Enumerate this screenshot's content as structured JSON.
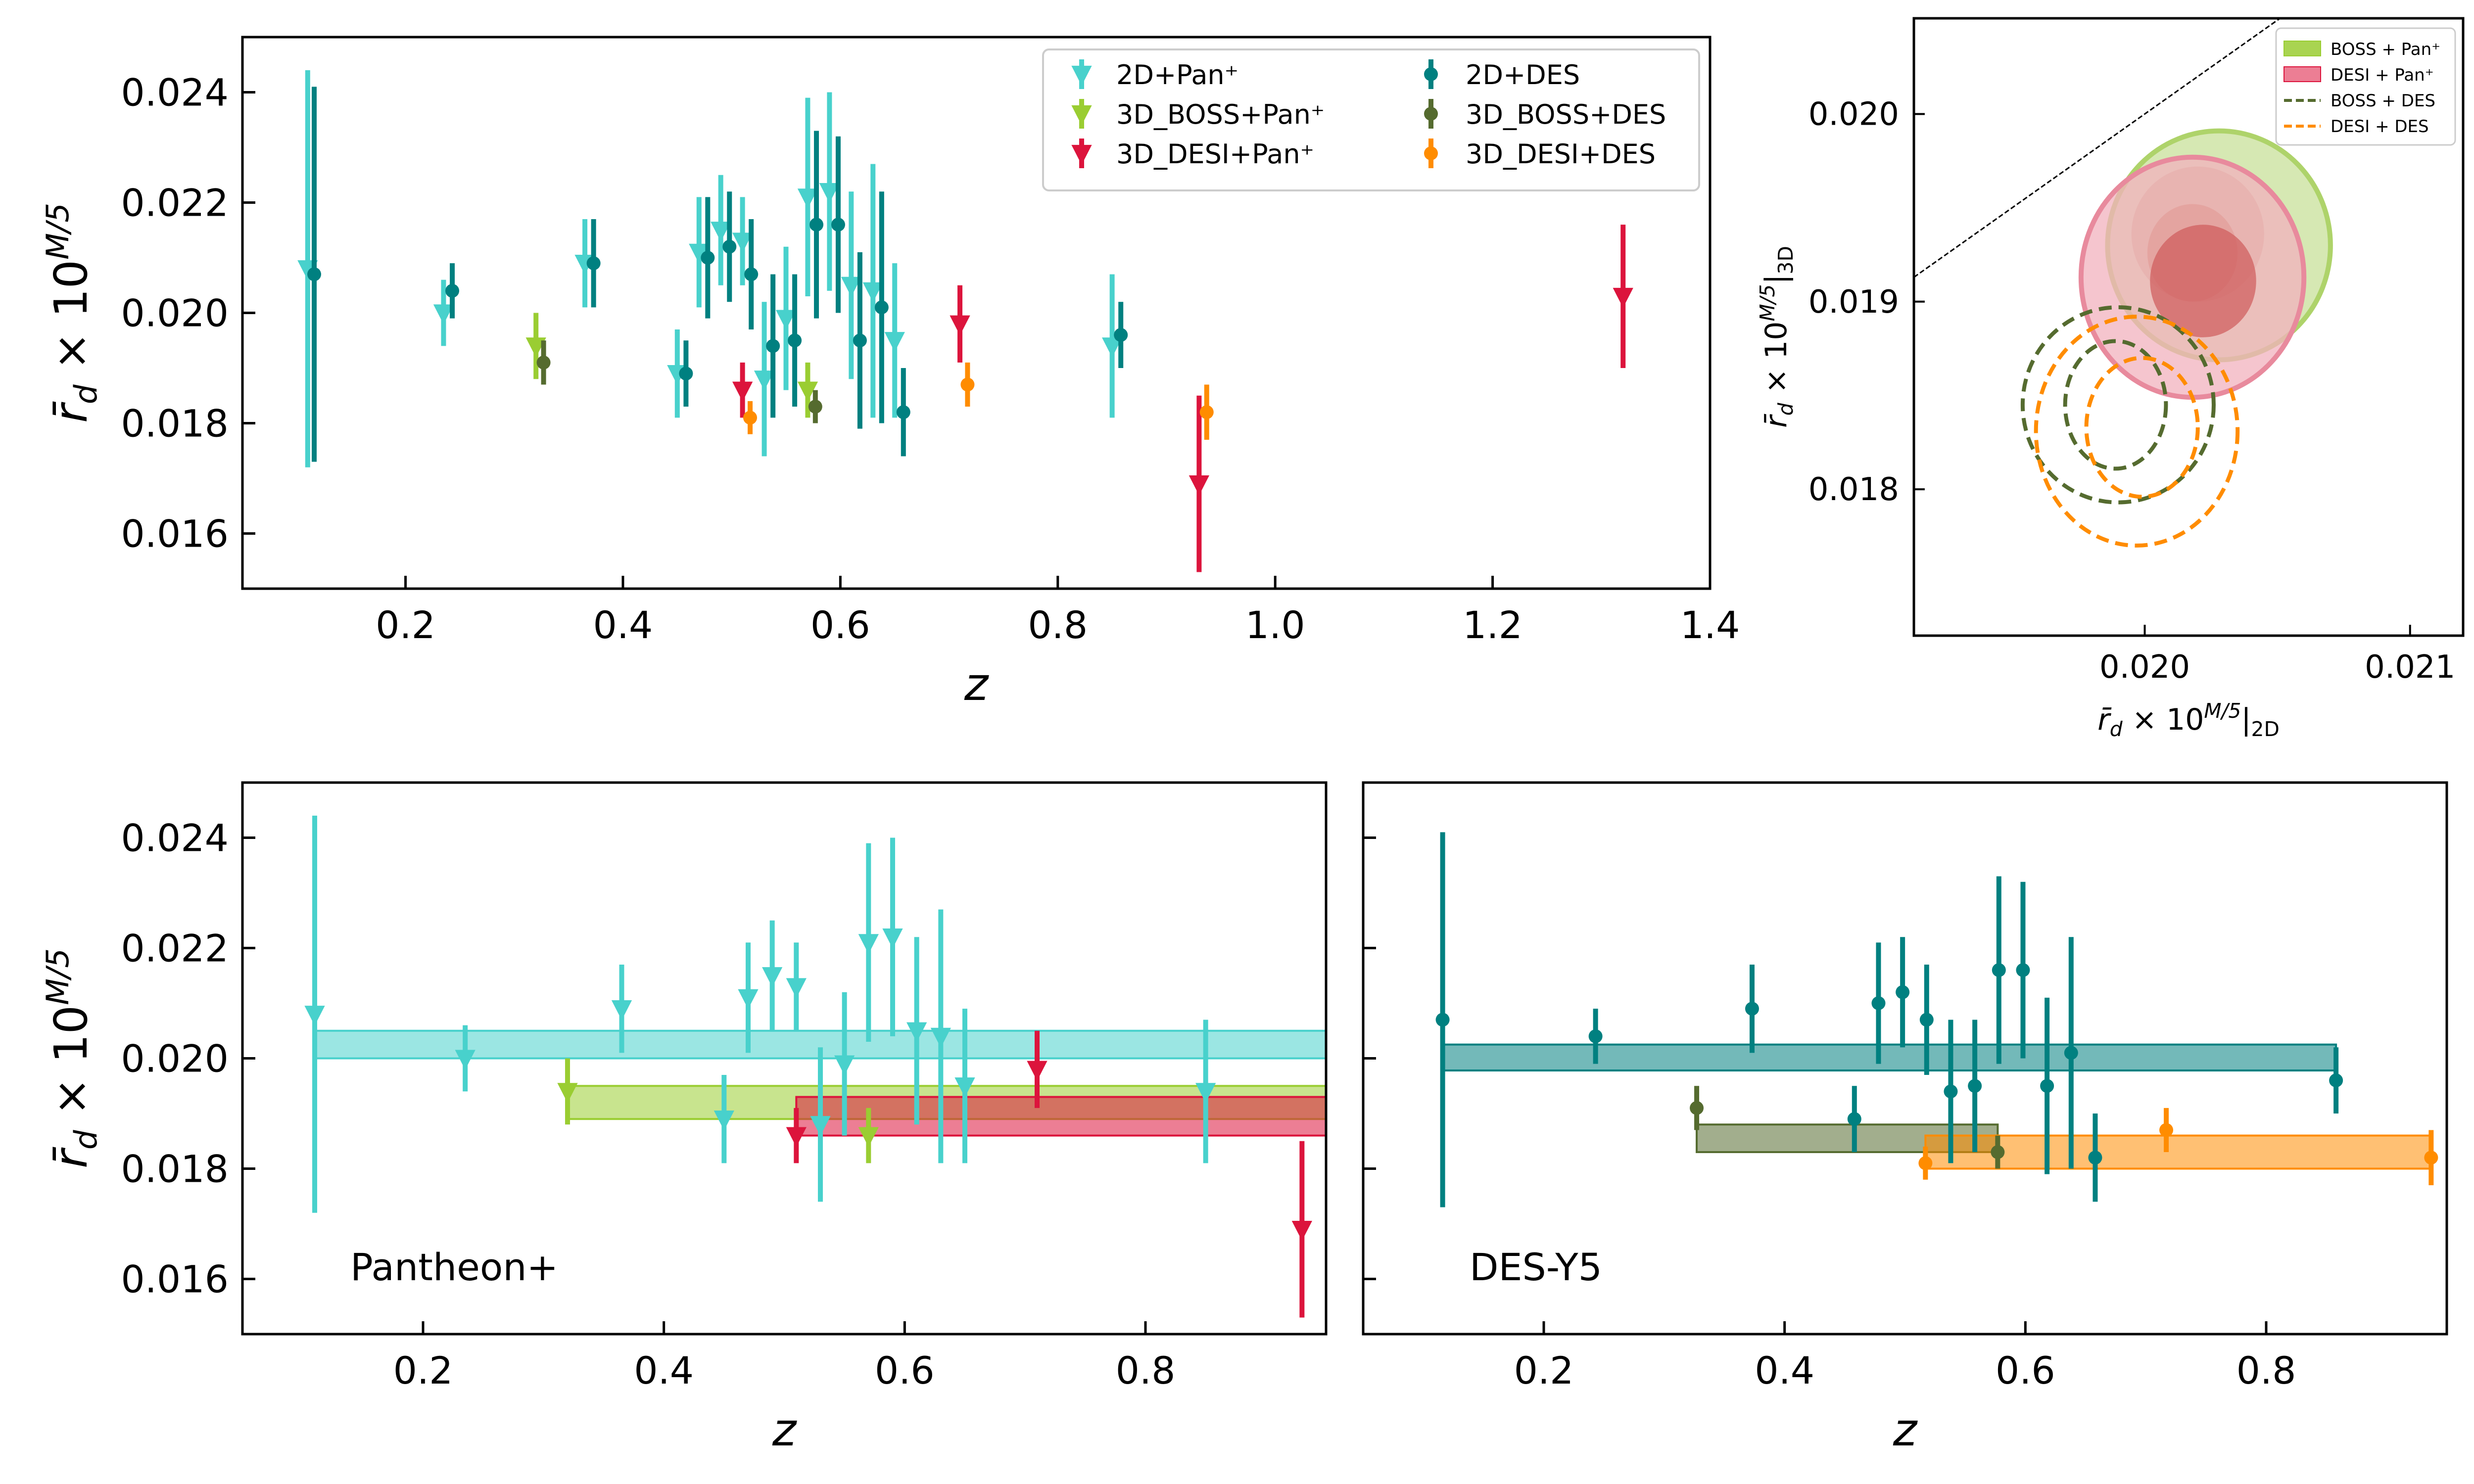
{
  "figure": {
    "ylabel": "r̄_d × 10^{M/5}",
    "xlabel": "z",
    "panel_b_annotation": "Pantheon+",
    "panel_c_annotation": "DES-Y5"
  },
  "colors": {
    "pan2d": "#48d1cc",
    "boss_pan": "#9acd32",
    "desi_pan": "#dc143c",
    "des2d": "#008080",
    "boss_des": "#556b2f",
    "desi_des": "#ff8c00"
  },
  "chart_data": [
    {
      "id": "top-left",
      "type": "scatter",
      "title": "",
      "xlabel": "z",
      "ylabel": "r̄_d × 10^{M/5}",
      "xlim": [
        0.05,
        1.4
      ],
      "ylim": [
        0.015,
        0.025
      ],
      "xticks": [
        "0.2",
        "0.4",
        "0.6",
        "0.8",
        "1.0",
        "1.2",
        "1.4"
      ],
      "yticks": [
        "0.016",
        "0.018",
        "0.020",
        "0.022",
        "0.024"
      ],
      "legend_position": "top-center",
      "series": [
        {
          "name": "2D+Pan⁺",
          "color_key": "pan2d",
          "marker": "triangle-down",
          "points": [
            [
              0.11,
              0.0208,
              0.0036
            ],
            [
              0.235,
              0.02,
              0.0006
            ],
            [
              0.365,
              0.0209,
              0.0008
            ],
            [
              0.45,
              0.0189,
              0.0008
            ],
            [
              0.47,
              0.0211,
              0.001
            ],
            [
              0.49,
              0.0215,
              0.001
            ],
            [
              0.51,
              0.0213,
              0.0008
            ],
            [
              0.53,
              0.0188,
              0.0014
            ],
            [
              0.55,
              0.0199,
              0.0013
            ],
            [
              0.57,
              0.0221,
              0.0018
            ],
            [
              0.59,
              0.0222,
              0.0018
            ],
            [
              0.61,
              0.0205,
              0.0017
            ],
            [
              0.63,
              0.0204,
              0.0023
            ],
            [
              0.65,
              0.0195,
              0.0014
            ],
            [
              0.85,
              0.0194,
              0.0013
            ]
          ]
        },
        {
          "name": "3D_BOSS+Pan⁺",
          "color_key": "boss_pan",
          "marker": "triangle-down",
          "points": [
            [
              0.32,
              0.0194,
              0.0006
            ],
            [
              0.57,
              0.0186,
              0.0005
            ]
          ]
        },
        {
          "name": "3D_DESI+Pan⁺",
          "color_key": "desi_pan",
          "marker": "triangle-down",
          "points": [
            [
              0.51,
              0.0186,
              0.0005
            ],
            [
              0.71,
              0.0198,
              0.0007
            ],
            [
              0.93,
              0.0169,
              0.0016
            ],
            [
              1.32,
              0.0203,
              0.0013
            ]
          ]
        },
        {
          "name": "2D+DES",
          "color_key": "des2d",
          "marker": "circle",
          "points": [
            [
              0.116,
              0.0207,
              0.0034
            ],
            [
              0.243,
              0.0204,
              0.0005
            ],
            [
              0.373,
              0.0209,
              0.0008
            ],
            [
              0.458,
              0.0189,
              0.0006
            ],
            [
              0.478,
              0.021,
              0.0011
            ],
            [
              0.498,
              0.0212,
              0.001
            ],
            [
              0.518,
              0.0207,
              0.001
            ],
            [
              0.538,
              0.0194,
              0.0013
            ],
            [
              0.558,
              0.0195,
              0.0012
            ],
            [
              0.578,
              0.0216,
              0.0017
            ],
            [
              0.598,
              0.0216,
              0.0016
            ],
            [
              0.618,
              0.0195,
              0.0016
            ],
            [
              0.638,
              0.0201,
              0.0021
            ],
            [
              0.658,
              0.0182,
              0.0008
            ],
            [
              0.858,
              0.0196,
              0.0006
            ]
          ]
        },
        {
          "name": "3D_BOSS+DES",
          "color_key": "boss_des",
          "marker": "circle",
          "points": [
            [
              0.327,
              0.0191,
              0.0004
            ],
            [
              0.577,
              0.0183,
              0.0003
            ]
          ]
        },
        {
          "name": "3D_DESI+DES",
          "color_key": "desi_des",
          "marker": "circle",
          "points": [
            [
              0.517,
              0.0181,
              0.0003
            ],
            [
              0.717,
              0.0187,
              0.0004
            ],
            [
              0.937,
              0.0182,
              0.0005
            ]
          ]
        }
      ]
    },
    {
      "id": "top-right",
      "type": "contour",
      "xlabel": "r̄_d × 10^{M/5}|_{2D}",
      "ylabel": "r̄_d × 10^{M/5}|_{3D}",
      "xlim": [
        0.01913,
        0.0212
      ],
      "ylim": [
        0.01722,
        0.02051
      ],
      "xticks": [
        "0.020",
        "0.021"
      ],
      "yticks": [
        "0.018",
        "0.019",
        "0.020"
      ],
      "legend_position": "top-right",
      "series": [
        {
          "name": "BOSS + Pan⁺",
          "color_key": "boss_pan",
          "style": "filled",
          "ellipses": [
            [
              0.02028,
              0.0193,
              0.00042,
              0.00061
            ],
            [
              0.0202,
              0.01936,
              0.00025,
              0.00036
            ],
            [
              0.02018,
              0.01926,
              0.00017,
              0.00026
            ]
          ]
        },
        {
          "name": "DESI + Pan⁺",
          "color_key": "desi_pan",
          "style": "filled",
          "ellipses": [
            [
              0.02018,
              0.01913,
              0.00042,
              0.00064
            ],
            [
              0.02022,
              0.01911,
              0.0002,
              0.0003
            ]
          ]
        },
        {
          "name": "BOSS + DES",
          "color_key": "boss_des",
          "style": "dashed",
          "ellipses": [
            [
              0.0199,
              0.01845,
              0.00036,
              0.00052
            ],
            [
              0.01989,
              0.01845,
              0.00019,
              0.00034
            ]
          ]
        },
        {
          "name": "DESI + DES",
          "color_key": "desi_des",
          "style": "dashed",
          "ellipses": [
            [
              0.01997,
              0.01831,
              0.00038,
              0.00061
            ],
            [
              0.01999,
              0.01833,
              0.00021,
              0.00037
            ]
          ]
        }
      ]
    },
    {
      "id": "bottom-left",
      "type": "scatter",
      "xlabel": "z",
      "ylabel": "r̄_d × 10^{M/5}",
      "annotation": "Pantheon+",
      "xlim": [
        0.05,
        0.95
      ],
      "ylim": [
        0.015,
        0.025
      ],
      "xticks": [
        "0.2",
        "0.4",
        "0.6",
        "0.8"
      ],
      "yticks": [
        "0.016",
        "0.018",
        "0.020",
        "0.022",
        "0.024"
      ],
      "bands": [
        {
          "color_key": "pan2d",
          "z_range": [
            0.11,
            0.95
          ],
          "y_range": [
            0.02,
            0.0205
          ]
        },
        {
          "color_key": "boss_pan",
          "z_range": [
            0.32,
            0.95
          ],
          "y_range": [
            0.0189,
            0.0195
          ]
        },
        {
          "color_key": "desi_pan",
          "z_range": [
            0.51,
            0.95
          ],
          "y_range": [
            0.0186,
            0.0193
          ]
        }
      ],
      "series": [
        {
          "name": "2D+Pan⁺",
          "color_key": "pan2d",
          "marker": "triangle-down",
          "points": [
            [
              0.11,
              0.0208,
              0.0036
            ],
            [
              0.235,
              0.02,
              0.0006
            ],
            [
              0.365,
              0.0209,
              0.0008
            ],
            [
              0.45,
              0.0189,
              0.0008
            ],
            [
              0.47,
              0.0211,
              0.001
            ],
            [
              0.49,
              0.0215,
              0.001
            ],
            [
              0.51,
              0.0213,
              0.0008
            ],
            [
              0.53,
              0.0188,
              0.0014
            ],
            [
              0.55,
              0.0199,
              0.0013
            ],
            [
              0.57,
              0.0221,
              0.0018
            ],
            [
              0.59,
              0.0222,
              0.0018
            ],
            [
              0.61,
              0.0205,
              0.0017
            ],
            [
              0.63,
              0.0204,
              0.0023
            ],
            [
              0.65,
              0.0195,
              0.0014
            ],
            [
              0.85,
              0.0194,
              0.0013
            ]
          ]
        },
        {
          "name": "3D_BOSS+Pan⁺",
          "color_key": "boss_pan",
          "marker": "triangle-down",
          "points": [
            [
              0.32,
              0.0194,
              0.0006
            ],
            [
              0.57,
              0.0186,
              0.0005
            ]
          ]
        },
        {
          "name": "3D_DESI+Pan⁺",
          "color_key": "desi_pan",
          "marker": "triangle-down",
          "points": [
            [
              0.51,
              0.0186,
              0.0005
            ],
            [
              0.71,
              0.0198,
              0.0007
            ],
            [
              0.93,
              0.0169,
              0.0016
            ]
          ]
        }
      ]
    },
    {
      "id": "bottom-right",
      "type": "scatter",
      "xlabel": "z",
      "annotation": "DES-Y5",
      "xlim": [
        0.05,
        0.95
      ],
      "ylim": [
        0.015,
        0.025
      ],
      "xticks": [
        "0.2",
        "0.4",
        "0.6",
        "0.8"
      ],
      "yticks": [],
      "bands": [
        {
          "color_key": "des2d",
          "z_range": [
            0.116,
            0.858
          ],
          "y_range": [
            0.01978,
            0.02025
          ]
        },
        {
          "color_key": "boss_des",
          "z_range": [
            0.327,
            0.577
          ],
          "y_range": [
            0.0183,
            0.0188
          ]
        },
        {
          "color_key": "desi_des",
          "z_range": [
            0.517,
            0.937
          ],
          "y_range": [
            0.018,
            0.0186
          ]
        }
      ],
      "series": [
        {
          "name": "2D+DES",
          "color_key": "des2d",
          "marker": "circle",
          "points": [
            [
              0.116,
              0.0207,
              0.0034
            ],
            [
              0.243,
              0.0204,
              0.0005
            ],
            [
              0.373,
              0.0209,
              0.0008
            ],
            [
              0.458,
              0.0189,
              0.0006
            ],
            [
              0.478,
              0.021,
              0.0011
            ],
            [
              0.498,
              0.0212,
              0.001
            ],
            [
              0.518,
              0.0207,
              0.001
            ],
            [
              0.538,
              0.0194,
              0.0013
            ],
            [
              0.558,
              0.0195,
              0.0012
            ],
            [
              0.578,
              0.0216,
              0.0017
            ],
            [
              0.598,
              0.0216,
              0.0016
            ],
            [
              0.618,
              0.0195,
              0.0016
            ],
            [
              0.638,
              0.0201,
              0.0021
            ],
            [
              0.658,
              0.0182,
              0.0008
            ],
            [
              0.858,
              0.0196,
              0.0006
            ]
          ]
        },
        {
          "name": "3D_BOSS+DES",
          "color_key": "boss_des",
          "marker": "circle",
          "points": [
            [
              0.327,
              0.0191,
              0.0004
            ],
            [
              0.577,
              0.0183,
              0.0003
            ]
          ]
        },
        {
          "name": "3D_DESI+DES",
          "color_key": "desi_des",
          "marker": "circle",
          "points": [
            [
              0.517,
              0.0181,
              0.0003
            ],
            [
              0.717,
              0.0187,
              0.0004
            ],
            [
              0.937,
              0.0182,
              0.0005
            ]
          ]
        }
      ]
    }
  ]
}
